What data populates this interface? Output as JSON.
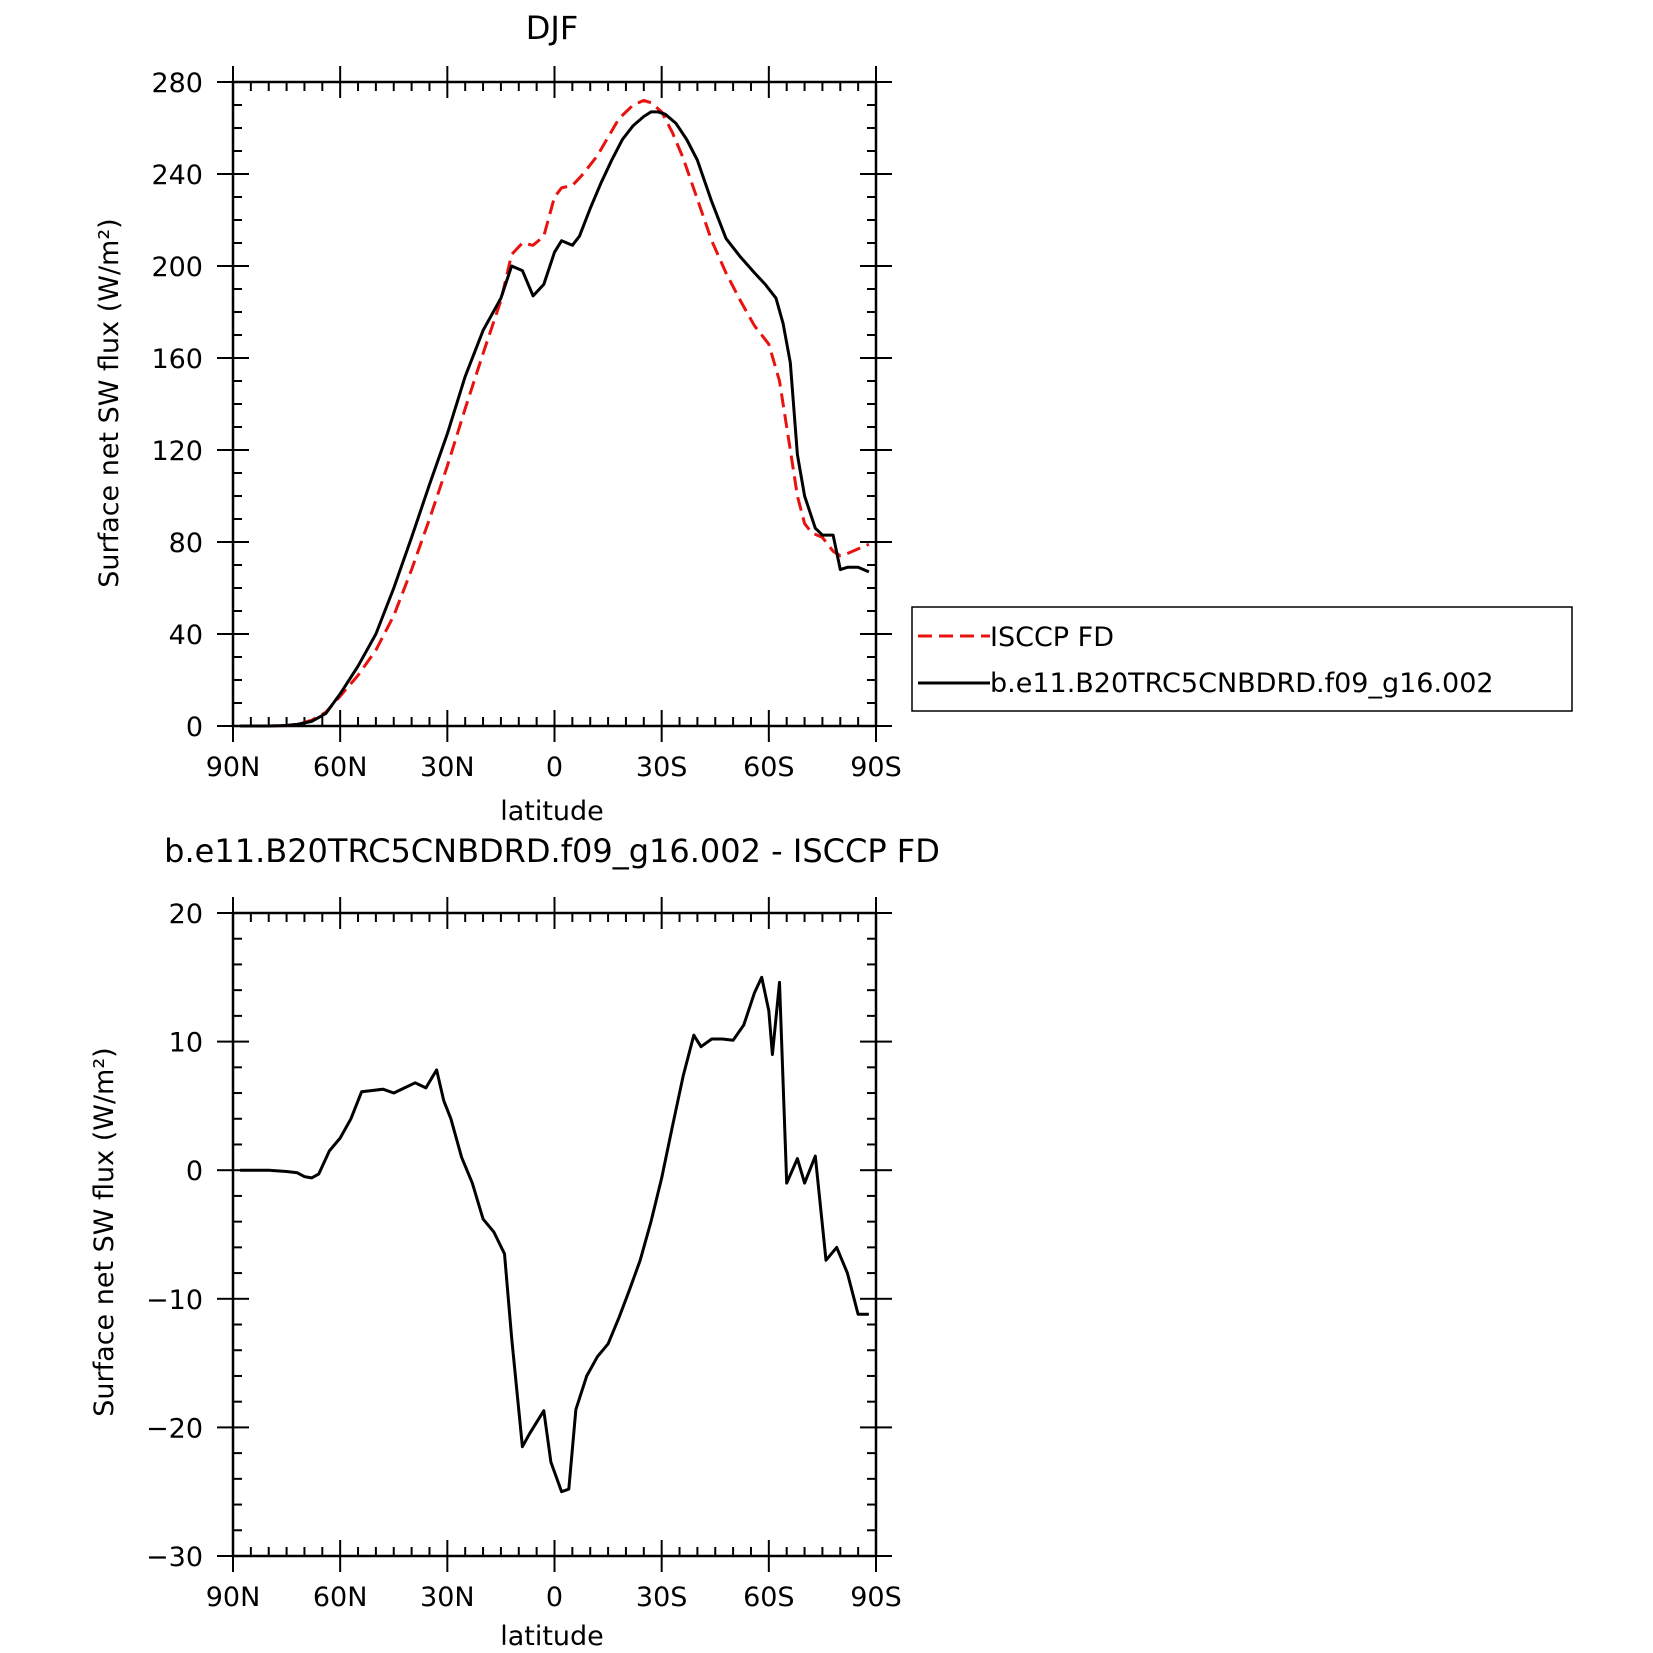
{
  "colors": {
    "isccp": "#e8130f",
    "model": "#000000"
  },
  "chart_data": [
    {
      "type": "line",
      "title": "DJF",
      "xlabel": "latitude",
      "ylabel": "Surface net SW flux (W/m²)",
      "xlim": [
        -90,
        90
      ],
      "ylim": [
        0,
        280
      ],
      "xticks": [
        -90,
        -60,
        -30,
        0,
        30,
        60,
        90
      ],
      "xticklabels": [
        "90N",
        "60N",
        "30N",
        "0",
        "30S",
        "60S",
        "90S"
      ],
      "yticks": [
        0,
        40,
        80,
        120,
        160,
        200,
        240,
        280
      ],
      "yticklabels": [
        "0",
        "40",
        "80",
        "120",
        "160",
        "200",
        "240",
        "280"
      ],
      "grid": false,
      "legend_position": "right",
      "series": [
        {
          "name": "ISCCP FD",
          "style": "dashed",
          "x": [
            -88,
            -80,
            -75,
            -72,
            -68,
            -64,
            -60,
            -55,
            -50,
            -45,
            -40,
            -35,
            -30,
            -25,
            -20,
            -15,
            -12,
            -9,
            -6,
            -3,
            0,
            2,
            5,
            8,
            12,
            15,
            18,
            22,
            25,
            27,
            30,
            33,
            36,
            40,
            44,
            48,
            52,
            56,
            60,
            63,
            66,
            68,
            70,
            72,
            75,
            78,
            80,
            82,
            85,
            88
          ],
          "y": [
            0,
            0,
            0.2,
            0.8,
            2.5,
            6,
            13,
            22,
            33,
            48,
            68,
            90,
            113,
            138,
            162,
            185,
            205,
            210,
            209,
            213,
            230,
            234,
            235,
            240,
            248,
            256,
            264,
            270,
            272,
            271,
            267,
            258,
            247,
            229,
            211,
            197,
            185,
            174,
            166,
            150,
            120,
            100,
            88,
            84,
            82,
            76,
            74,
            75,
            77,
            79
          ]
        },
        {
          "name": "b.e11.B20TRC5CNBDRD.f09_g16.002",
          "style": "solid",
          "x": [
            -88,
            -80,
            -75,
            -72,
            -68,
            -64,
            -60,
            -55,
            -50,
            -45,
            -40,
            -35,
            -30,
            -25,
            -20,
            -15,
            -12,
            -9,
            -6,
            -3,
            0,
            2,
            5,
            7,
            10,
            13,
            16,
            19,
            22,
            25,
            27,
            29,
            31,
            34,
            37,
            40,
            44,
            48,
            52,
            56,
            59,
            62,
            64,
            66,
            68,
            70,
            73,
            75,
            78,
            80,
            82,
            85,
            88
          ],
          "y": [
            0,
            0,
            0.2,
            0.7,
            2,
            5.5,
            14,
            26,
            40,
            60,
            82,
            105,
            127,
            152,
            172,
            186,
            200,
            198,
            187,
            192,
            206,
            211,
            209,
            213,
            225,
            236,
            246,
            255,
            261,
            265,
            267,
            267,
            266,
            262,
            255,
            246,
            228,
            212,
            204,
            197,
            192,
            186,
            175,
            158,
            118,
            100,
            86,
            83,
            83,
            68,
            69,
            69,
            67
          ]
        }
      ]
    },
    {
      "type": "line",
      "title": "b.e11.B20TRC5CNBDRD.f09_g16.002 - ISCCP FD",
      "xlabel": "latitude",
      "ylabel": "Surface net SW flux (W/m²)",
      "xlim": [
        -90,
        90
      ],
      "ylim": [
        -30,
        20
      ],
      "xticks": [
        -90,
        -60,
        -30,
        0,
        30,
        60,
        90
      ],
      "xticklabels": [
        "90N",
        "60N",
        "30N",
        "0",
        "30S",
        "60S",
        "90S"
      ],
      "yticks": [
        -30,
        -20,
        -10,
        0,
        10,
        20
      ],
      "yticklabels": [
        "−30",
        "−20",
        "−10",
        "0",
        "10",
        "20"
      ],
      "grid": false,
      "series": [
        {
          "style": "solid",
          "x": [
            -88,
            -80,
            -75,
            -72,
            -70,
            -68,
            -66,
            -63,
            -60,
            -57,
            -54,
            -51,
            -48,
            -45,
            -42,
            -39,
            -36,
            -33,
            -31,
            -29,
            -26,
            -23,
            -20,
            -17,
            -14,
            -12,
            -9,
            -7,
            -3,
            -1,
            2,
            4,
            6,
            9,
            12,
            15,
            18,
            21,
            24,
            27,
            30,
            33,
            36,
            39,
            41,
            44,
            47,
            50,
            53,
            56,
            58,
            60,
            61,
            63,
            65,
            68,
            70,
            73,
            76,
            79,
            82,
            85,
            88
          ],
          "y": [
            0,
            0,
            -0.1,
            -0.2,
            -0.5,
            -0.6,
            -0.3,
            1.5,
            2.5,
            4,
            6.1,
            6.2,
            6.3,
            6.0,
            6.4,
            6.8,
            6.4,
            7.8,
            5.4,
            4,
            1,
            -1,
            -3.8,
            -4.8,
            -6.5,
            -13,
            -21.5,
            -20.5,
            -18.7,
            -22.7,
            -25,
            -24.8,
            -18.6,
            -16,
            -14.5,
            -13.5,
            -11.5,
            -9.3,
            -7,
            -4,
            -0.6,
            3.4,
            7.3,
            10.5,
            9.6,
            10.2,
            10.2,
            10.1,
            11.3,
            13.8,
            15,
            12.4,
            9,
            14.6,
            -1,
            0.9,
            -1,
            1.1,
            -7,
            -6,
            -8,
            -11.2,
            -11.2
          ]
        }
      ]
    }
  ]
}
